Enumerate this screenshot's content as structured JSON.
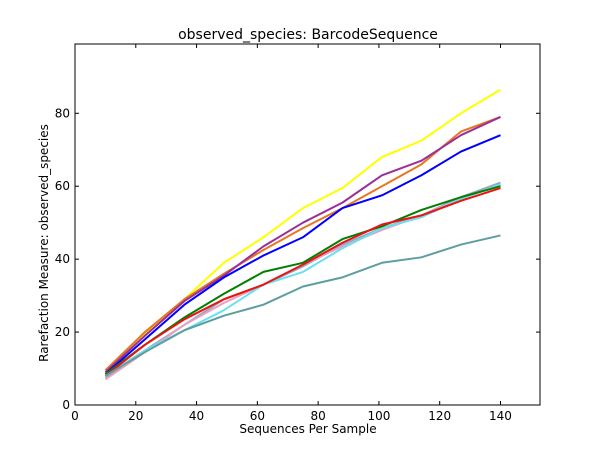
{
  "chart_data": {
    "type": "line",
    "title": "observed_species: BarcodeSequence",
    "xlabel": "Sequences Per Sample",
    "ylabel": "Rarefaction Measure: observed_species",
    "xlim": [
      0,
      153
    ],
    "ylim": [
      0,
      99
    ],
    "xticks": [
      0,
      20,
      40,
      60,
      80,
      100,
      120,
      140
    ],
    "yticks": [
      0,
      20,
      40,
      60,
      80
    ],
    "grid": false,
    "legend": "none",
    "x": [
      10,
      23,
      36,
      49,
      62,
      75,
      88,
      101,
      114,
      127,
      140
    ],
    "series": [
      {
        "color": "#ffff00",
        "values": [
          9.5,
          19.5,
          29.0,
          39.0,
          46.0,
          54.0,
          59.5,
          68.0,
          72.5,
          80.0,
          86.5
        ]
      },
      {
        "color": "#e87520",
        "values": [
          9.5,
          20.0,
          29.0,
          36.0,
          42.5,
          48.5,
          54.0,
          60.0,
          66.0,
          75.0,
          79.0
        ]
      },
      {
        "color": "#9a2f9a",
        "values": [
          9.0,
          19.0,
          28.5,
          35.5,
          43.5,
          50.0,
          55.5,
          63.0,
          67.0,
          74.0,
          79.0
        ]
      },
      {
        "color": "#0000ff",
        "values": [
          8.5,
          18.0,
          27.5,
          35.0,
          41.0,
          46.0,
          54.0,
          57.5,
          63.0,
          69.5,
          74.0
        ]
      },
      {
        "color": "#8fa8c8",
        "values": [
          7.5,
          15.0,
          22.0,
          29.0,
          33.0,
          38.0,
          44.0,
          48.5,
          52.0,
          57.0,
          61.0
        ]
      },
      {
        "color": "#e8a0c0",
        "values": [
          7.0,
          14.5,
          22.0,
          28.0,
          33.0,
          38.5,
          43.5,
          48.0,
          52.0,
          56.5,
          60.5
        ]
      },
      {
        "color": "#6ae0f0",
        "values": [
          8.0,
          15.0,
          20.5,
          26.0,
          33.0,
          36.5,
          43.0,
          48.5,
          51.5,
          56.5,
          60.5
        ]
      },
      {
        "color": "#008000",
        "values": [
          8.5,
          16.5,
          24.0,
          30.5,
          36.5,
          39.0,
          45.5,
          49.0,
          53.5,
          57.0,
          60.0
        ]
      },
      {
        "color": "#ee1111",
        "values": [
          8.0,
          16.5,
          23.5,
          29.0,
          33.0,
          38.5,
          44.5,
          49.5,
          52.0,
          56.0,
          59.5
        ]
      },
      {
        "color": "#5f9ea0",
        "values": [
          8.0,
          14.5,
          20.5,
          24.5,
          27.5,
          32.5,
          35.0,
          39.0,
          40.5,
          44.0,
          46.5
        ]
      }
    ]
  }
}
